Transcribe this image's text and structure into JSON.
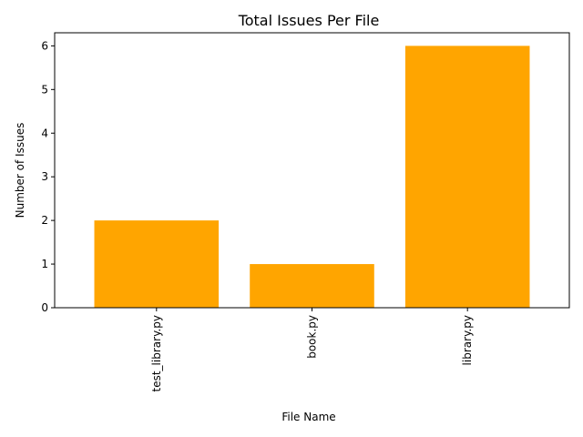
{
  "chart_data": {
    "type": "bar",
    "title": "Total Issues Per File",
    "xlabel": "File Name",
    "ylabel": "Number of Issues",
    "categories": [
      "test_library.py",
      "book.py",
      "library.py"
    ],
    "values": [
      2,
      1,
      6
    ],
    "ylim": [
      0,
      6.3
    ],
    "yticks": [
      0,
      1,
      2,
      3,
      4,
      5,
      6
    ],
    "bar_color": "#ffa500",
    "grid": false,
    "legend": "none"
  }
}
